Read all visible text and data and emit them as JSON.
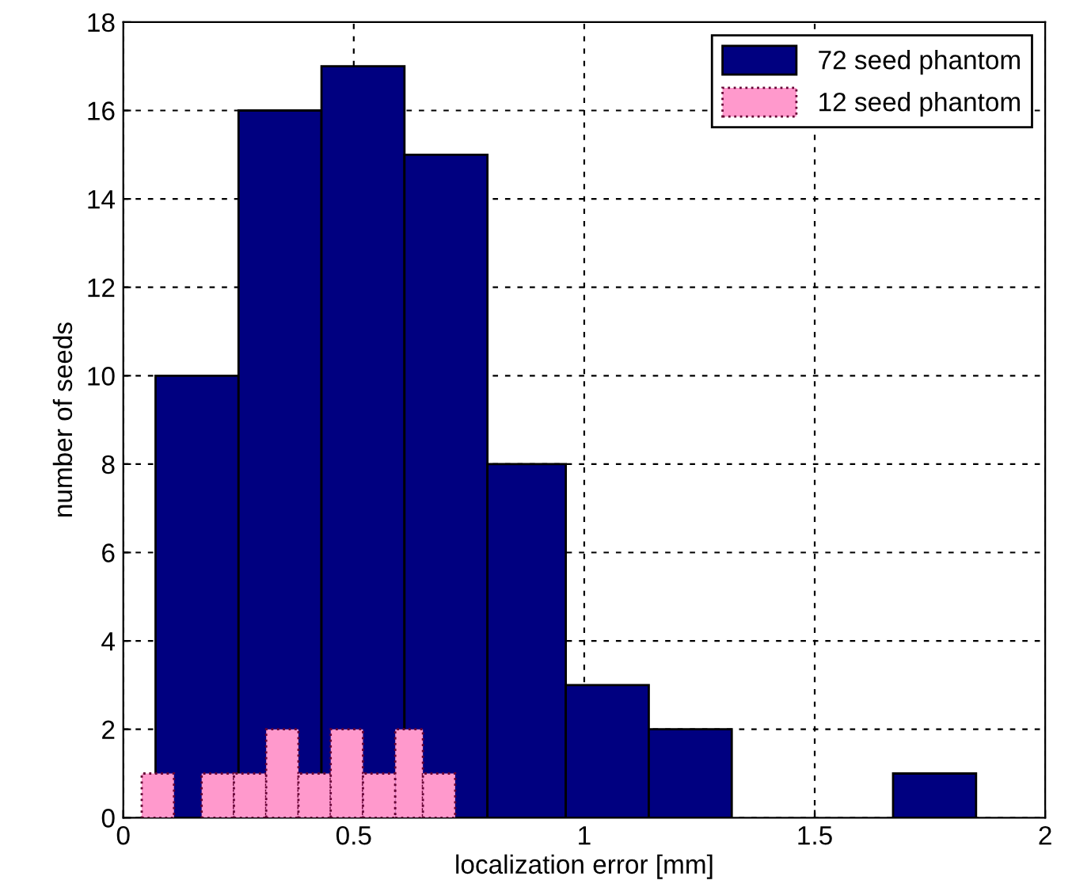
{
  "chart_data": {
    "type": "histogram",
    "xlabel": "localization error [mm]",
    "ylabel": "number of seeds",
    "bins": [
      0.07,
      0.25,
      0.43,
      0.61,
      0.79,
      0.96,
      1.14,
      1.32,
      1.67,
      1.85
    ],
    "series": [
      {
        "name": "72 seed phantom",
        "color": "#000080",
        "line_style": "solid",
        "values": [
          10,
          16,
          17,
          15,
          8,
          3,
          2,
          0,
          1
        ]
      },
      {
        "name": "12 seed phantom",
        "color": "#ff99cc",
        "line_style": "dotted",
        "bins": [
          0.04,
          0.11,
          0.17,
          0.24,
          0.31,
          0.38,
          0.45,
          0.52,
          0.59,
          0.65,
          0.72
        ],
        "values": [
          1,
          0,
          1,
          1,
          2,
          1,
          2,
          1,
          2,
          1
        ]
      }
    ],
    "xlim": [
      0,
      2
    ],
    "xticks": [
      0,
      0.5,
      1,
      1.5,
      2
    ],
    "ylim": [
      0,
      18
    ],
    "yticks": [
      0,
      2,
      4,
      6,
      8,
      10,
      12,
      14,
      16,
      18
    ],
    "grid": true,
    "legend": "top right"
  }
}
